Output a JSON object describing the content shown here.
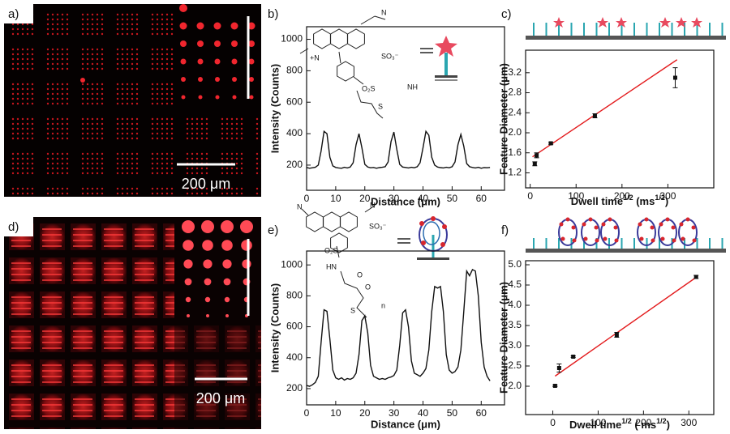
{
  "panel_labels": [
    "a)",
    "b)",
    "c)",
    "d)",
    "e)",
    "f)"
  ],
  "scale_bars": [
    "200 μm",
    "200 μm"
  ],
  "chart_data": [
    {
      "type": "line",
      "ylabel": "Intensity (Counts)",
      "xlabel": "Distance (μm)",
      "annotations": [
        "N",
        "+N",
        "SO₃⁻",
        "O₂S",
        "NH",
        "S"
      ],
      "x": [
        0,
        1,
        2,
        3,
        4,
        5,
        6,
        7,
        8,
        9,
        10,
        11,
        12,
        13,
        14,
        15,
        16,
        17,
        18,
        19,
        20,
        21,
        22,
        23,
        24,
        25,
        26,
        27,
        28,
        29,
        30,
        31,
        32,
        33,
        34,
        35,
        36,
        37,
        38,
        39,
        40,
        41,
        42,
        43,
        44,
        45,
        46,
        47,
        48,
        49,
        50,
        51,
        52,
        53,
        54,
        55,
        56,
        57,
        58,
        59,
        60,
        61,
        62,
        63
      ],
      "series": [
        {
          "color": "#111111",
          "values": [
            185,
            180,
            183,
            186,
            200,
            290,
            415,
            400,
            250,
            195,
            185,
            182,
            180,
            186,
            182,
            188,
            215,
            330,
            400,
            310,
            205,
            188,
            183,
            185,
            180,
            184,
            186,
            190,
            220,
            350,
            410,
            300,
            205,
            188,
            185,
            182,
            186,
            183,
            190,
            215,
            310,
            415,
            390,
            250,
            200,
            188,
            184,
            182,
            186,
            183,
            190,
            220,
            330,
            395,
            320,
            210,
            190,
            185,
            182,
            186,
            180,
            184,
            183,
            185
          ]
        }
      ],
      "xlim": [
        0,
        68
      ],
      "ylim": [
        40,
        1080
      ],
      "xticks": [
        0,
        10,
        20,
        30,
        40,
        50,
        60
      ],
      "yticks": [
        200,
        400,
        600,
        800,
        1000
      ]
    },
    {
      "type": "scatter",
      "ylabel": "Feature Diameter (μm)",
      "xlabel_parts": [
        {
          "text": "Dwell time"
        },
        {
          "text": "1/2",
          "sup": true
        },
        {
          "text": " (ms"
        },
        {
          "text": "1/2",
          "sup": true
        },
        {
          "text": ")"
        }
      ],
      "x": [
        10,
        14,
        45,
        141,
        316
      ],
      "series": [
        {
          "color": "#111111",
          "values": [
            1.38,
            1.55,
            1.79,
            2.34,
            3.1
          ],
          "errors": [
            0.04,
            0.05,
            0.02,
            0.04,
            0.2
          ]
        }
      ],
      "fit": {
        "color": "#e31a1c",
        "x": [
          5,
          320
        ],
        "values": [
          1.52,
          3.46
        ]
      },
      "xlim": [
        -10,
        400
      ],
      "ylim": [
        0.9,
        3.65
      ],
      "xticks": [
        0,
        100,
        200,
        300
      ],
      "yticks": [
        1.2,
        1.6,
        {
          "value": 2,
          "label": "2.0"
        },
        2.4,
        2.8,
        3.2
      ]
    },
    {
      "type": "line",
      "ylabel": "Intensity (Counts)",
      "xlabel": "Distance (μm)",
      "annotations": [
        "N",
        "N",
        "SO₃⁻",
        "O₂S",
        "HN",
        "O",
        "O",
        "S",
        "n"
      ],
      "x": [
        0,
        1,
        2,
        3,
        4,
        5,
        6,
        7,
        8,
        9,
        10,
        11,
        12,
        13,
        14,
        15,
        16,
        17,
        18,
        19,
        20,
        21,
        22,
        23,
        24,
        25,
        26,
        27,
        28,
        29,
        30,
        31,
        32,
        33,
        34,
        35,
        36,
        37,
        38,
        39,
        40,
        41,
        42,
        43,
        44,
        45,
        46,
        47,
        48,
        49,
        50,
        51,
        52,
        53,
        54,
        55,
        56,
        57,
        58,
        59,
        60,
        61,
        62,
        63
      ],
      "series": [
        {
          "color": "#111111",
          "values": [
            220,
            215,
            225,
            240,
            280,
            500,
            710,
            700,
            520,
            320,
            270,
            260,
            270,
            255,
            265,
            260,
            270,
            300,
            420,
            640,
            670,
            560,
            350,
            280,
            270,
            260,
            265,
            260,
            270,
            275,
            285,
            320,
            480,
            690,
            710,
            600,
            380,
            300,
            290,
            280,
            300,
            330,
            450,
            700,
            860,
            850,
            860,
            700,
            420,
            320,
            300,
            310,
            340,
            450,
            700,
            960,
            930,
            970,
            960,
            800,
            500,
            340,
            280,
            250
          ]
        }
      ],
      "xlim": [
        0,
        68
      ],
      "ylim": [
        95,
        1090
      ],
      "xticks": [
        0,
        10,
        20,
        30,
        40,
        50,
        60
      ],
      "yticks": [
        200,
        400,
        600,
        800,
        1000
      ]
    },
    {
      "type": "scatter",
      "ylabel": "Feature Diameter (μm)",
      "xlabel_parts": [
        {
          "text": "Dwell time"
        },
        {
          "text": "1/2",
          "sup": true
        },
        {
          "text": " ( ms"
        },
        {
          "text": "1/2",
          "sup": true
        },
        {
          "text": ")"
        }
      ],
      "x": [
        5,
        14,
        45,
        141,
        316
      ],
      "series": [
        {
          "color": "#111111",
          "values": [
            2.01,
            2.45,
            2.73,
            3.27,
            4.7
          ],
          "errors": [
            0.02,
            0.1,
            0.02,
            0.06,
            0.04
          ]
        }
      ],
      "fit": {
        "color": "#e31a1c",
        "x": [
          5,
          320
        ],
        "values": [
          2.25,
          4.72
        ]
      },
      "xlim": [
        -60,
        355
      ],
      "ylim": [
        1.3,
        5.1
      ],
      "xticks": [
        0,
        100,
        200,
        300
      ],
      "yticks": [
        {
          "value": 2,
          "label": "2.0"
        },
        2.5,
        {
          "value": 3,
          "label": "3.0"
        },
        3.5,
        {
          "value": 4,
          "label": "4.0"
        },
        4.5,
        {
          "value": 5,
          "label": "5.0"
        }
      ]
    }
  ]
}
